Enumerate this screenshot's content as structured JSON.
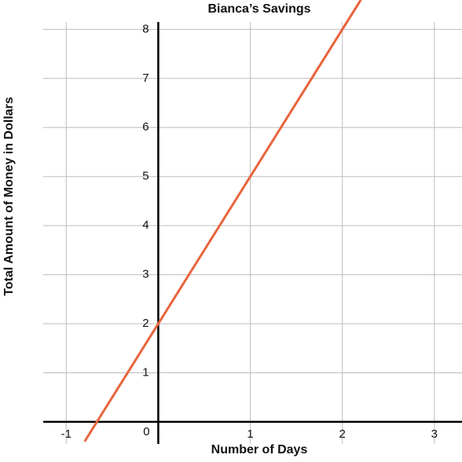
{
  "chart_data": {
    "type": "line",
    "title": "Bianca’s Savings",
    "x_label": "Number of Days",
    "y_label": "Total Amount of Money in Dollars",
    "x": [
      -0.8,
      2.2
    ],
    "values": [
      -0.4,
      8.6
    ],
    "color": "#e8643c",
    "xlim": [
      -1.25,
      3.3
    ],
    "ylim": [
      -0.45,
      8.15
    ],
    "xticks": [
      -1,
      0,
      1,
      2,
      3
    ],
    "yticks": [
      1,
      2,
      3,
      4,
      5,
      6,
      7,
      8
    ],
    "grid": true
  }
}
